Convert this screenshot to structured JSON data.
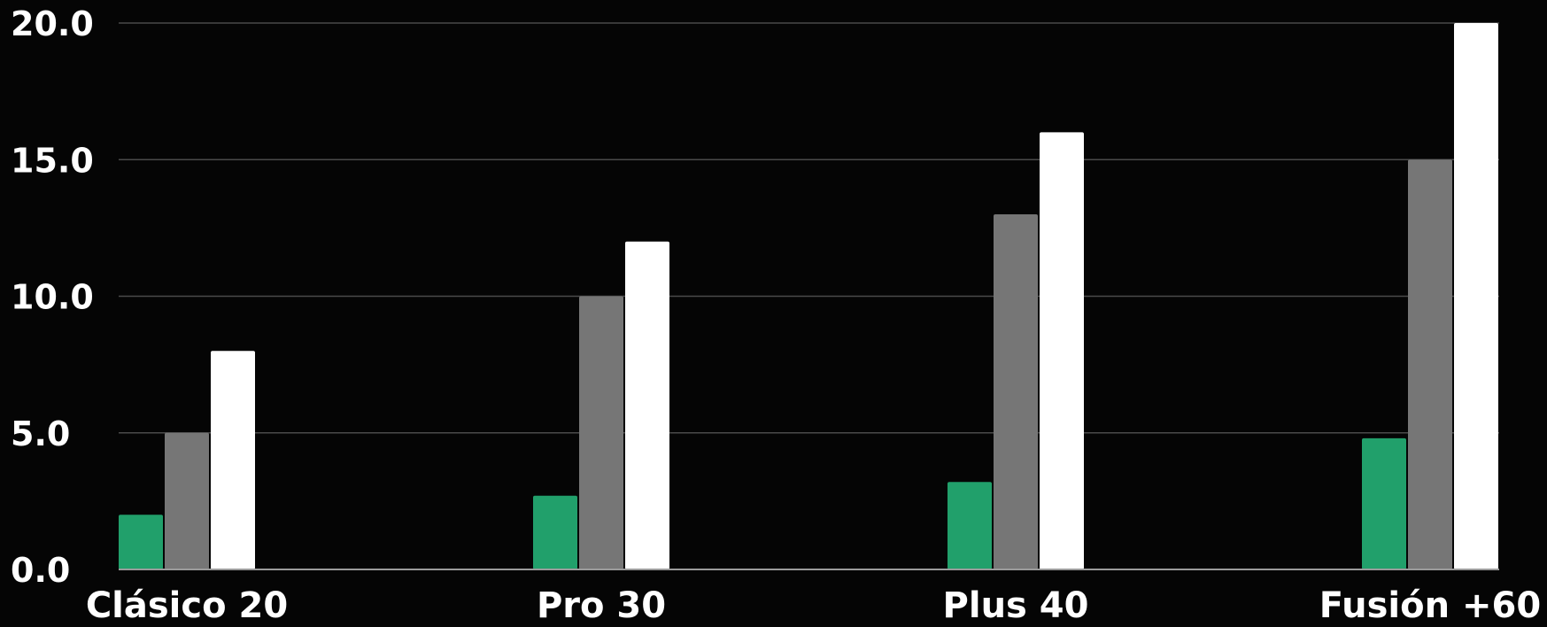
{
  "chart_data": {
    "type": "bar",
    "categories": [
      "Clásico 20",
      "Pro 30",
      "Plus 40",
      "Fusión +60"
    ],
    "series": [
      {
        "values": [
          2.0,
          2.7,
          3.2,
          4.8
        ],
        "color": "#21a06b"
      },
      {
        "values": [
          5.0,
          10.0,
          13.0,
          15.0
        ],
        "color": "#767676"
      },
      {
        "values": [
          8.0,
          12.0,
          16.0,
          20.0
        ],
        "color": "#ffffff"
      }
    ],
    "y_ticks": [
      "0.0",
      "5.0",
      "10.0",
      "15.0",
      "20.0"
    ],
    "ylim": [
      0,
      20
    ],
    "grid": true,
    "legend": "none",
    "title": "",
    "xlabel": "",
    "ylabel": "",
    "background": "#050505",
    "gridline_color": "#4a4a4a",
    "axis_color": "#9a9a9a",
    "text_color": "#ffffff"
  }
}
